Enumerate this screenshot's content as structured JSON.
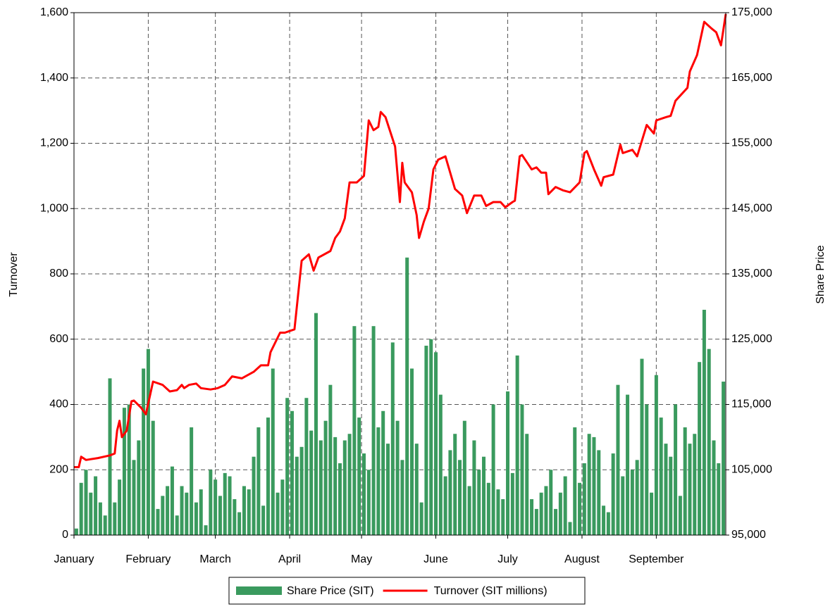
{
  "chart_data": {
    "type": "bar",
    "y_label": "Turnover",
    "y2_label": "Share Price",
    "xlim": [
      0,
      272
    ],
    "xticks": [
      {
        "value": 0,
        "label": "January"
      },
      {
        "value": 31,
        "label": "February"
      },
      {
        "value": 59,
        "label": "March"
      },
      {
        "value": 90,
        "label": "April"
      },
      {
        "value": 120,
        "label": "May"
      },
      {
        "value": 151,
        "label": "June"
      },
      {
        "value": 181,
        "label": "July"
      },
      {
        "value": 212,
        "label": "August"
      },
      {
        "value": 243,
        "label": "September"
      }
    ],
    "ylim": [
      0,
      1600
    ],
    "yticks": [
      0,
      200,
      400,
      600,
      800,
      {
        "value": 1000,
        "label": "1,000"
      },
      {
        "value": 1200,
        "label": "1,200"
      },
      {
        "value": 1400,
        "label": "1,400"
      },
      {
        "value": 1600,
        "label": "1,600"
      }
    ],
    "y2lim": [
      95000,
      175000
    ],
    "y2ticks": [
      {
        "value": 95000,
        "label": "95,000"
      },
      {
        "value": 105000,
        "label": "105,000"
      },
      {
        "value": 115000,
        "label": "115,000"
      },
      {
        "value": 125000,
        "label": "125,000"
      },
      {
        "value": 135000,
        "label": "135,000"
      },
      {
        "value": 145000,
        "label": "145,000"
      },
      {
        "value": 155000,
        "label": "155,000"
      },
      {
        "value": 165000,
        "label": "165,000"
      },
      {
        "value": 175000,
        "label": "175,000"
      }
    ],
    "grid": true,
    "legend": "bottom",
    "series": [
      {
        "name": "Share Price (SIT)",
        "type": "bar",
        "color": "#3a9a5e",
        "x": [
          1,
          3,
          5,
          7,
          9,
          11,
          13,
          15,
          17,
          19,
          21,
          23,
          25,
          27,
          29,
          31,
          33,
          35,
          37,
          39,
          41,
          43,
          45,
          47,
          49,
          51,
          53,
          55,
          57,
          59,
          61,
          63,
          65,
          67,
          69,
          71,
          73,
          75,
          77,
          79,
          81,
          83,
          85,
          87,
          89,
          91,
          93,
          95,
          97,
          99,
          101,
          103,
          105,
          107,
          109,
          111,
          113,
          115,
          117,
          119,
          121,
          123,
          125,
          127,
          129,
          131,
          133,
          135,
          137,
          139,
          141,
          143,
          145,
          147,
          149,
          151,
          153,
          155,
          157,
          159,
          161,
          163,
          165,
          167,
          169,
          171,
          173,
          175,
          177,
          179,
          181,
          183,
          185,
          187,
          189,
          191,
          193,
          195,
          197,
          199,
          201,
          203,
          205,
          207,
          209,
          211,
          213,
          215,
          217,
          219,
          221,
          223,
          225,
          227,
          229,
          231,
          233,
          235,
          237,
          239,
          241,
          243,
          245,
          247,
          249,
          251,
          253,
          255,
          257,
          259,
          261,
          263,
          265,
          267,
          269,
          271
        ],
        "values": [
          20,
          160,
          200,
          130,
          180,
          100,
          60,
          480,
          100,
          170,
          390,
          400,
          230,
          290,
          510,
          570,
          350,
          80,
          120,
          150,
          210,
          60,
          150,
          130,
          330,
          100,
          140,
          30,
          200,
          170,
          120,
          190,
          180,
          110,
          70,
          150,
          140,
          240,
          330,
          90,
          360,
          510,
          130,
          170,
          420,
          380,
          240,
          270,
          420,
          320,
          680,
          290,
          350,
          460,
          300,
          220,
          290,
          310,
          640,
          360,
          250,
          200,
          640,
          330,
          380,
          280,
          590,
          350,
          230,
          850,
          510,
          280,
          100,
          580,
          600,
          560,
          430,
          180,
          260,
          310,
          230,
          350,
          150,
          290,
          200,
          240,
          160,
          400,
          140,
          110,
          440,
          190,
          550,
          400,
          310,
          110,
          80,
          130,
          150,
          200,
          80,
          130,
          180,
          40,
          330,
          160,
          220,
          310,
          300,
          260,
          90,
          70,
          250,
          460,
          180,
          430,
          200,
          230,
          540,
          400,
          130,
          490,
          360,
          280,
          240,
          400,
          120,
          330,
          280,
          310,
          530,
          690,
          570,
          290,
          220,
          470
        ]
      },
      {
        "name": "Turnover (SIT millions)",
        "type": "line",
        "axis": "y2",
        "color": "#ff0000",
        "x": [
          0,
          2,
          3,
          5,
          10,
          15,
          17,
          18,
          19,
          20,
          22,
          24,
          25,
          28,
          30,
          33,
          37,
          40,
          43,
          45,
          46,
          48,
          51,
          53,
          57,
          60,
          63,
          66,
          70,
          75,
          78,
          81,
          82,
          84,
          86,
          88,
          92,
          93,
          95,
          98,
          100,
          102,
          107,
          109,
          111,
          113,
          115,
          118,
          121,
          123,
          125,
          127,
          128,
          130,
          134,
          136,
          137,
          138,
          141,
          143,
          144,
          146,
          148,
          150,
          152,
          155,
          159,
          162,
          164,
          167,
          170,
          172,
          175,
          178,
          180,
          183,
          184,
          186,
          187,
          191,
          193,
          195,
          197,
          198,
          201,
          204,
          207,
          211,
          213,
          214,
          217,
          220,
          221,
          225,
          228,
          229,
          233,
          235,
          239,
          242,
          243,
          247,
          249,
          251,
          256,
          257,
          260,
          263,
          266,
          268,
          270,
          272
        ],
        "values": [
          105400,
          105400,
          107000,
          106500,
          106800,
          107200,
          107500,
          111000,
          112500,
          110000,
          111000,
          115500,
          115600,
          114500,
          113500,
          118500,
          118000,
          117000,
          117200,
          118000,
          117500,
          118000,
          118200,
          117500,
          117300,
          117500,
          118000,
          119300,
          119000,
          120000,
          121000,
          121000,
          123000,
          124500,
          126000,
          126000,
          126500,
          130000,
          137000,
          138000,
          135500,
          137500,
          138500,
          140500,
          141500,
          143500,
          149000,
          149000,
          150000,
          158500,
          157000,
          157500,
          159800,
          159000,
          154500,
          146000,
          152000,
          149000,
          147500,
          144000,
          140500,
          143000,
          145000,
          151000,
          152500,
          153000,
          148000,
          147000,
          144300,
          147000,
          147000,
          145400,
          146000,
          146000,
          145200,
          146000,
          146200,
          153000,
          153200,
          151000,
          151300,
          150500,
          150500,
          147200,
          148300,
          147800,
          147500,
          149000,
          153500,
          153800,
          151000,
          148500,
          149800,
          150200,
          154800,
          153500,
          154000,
          153000,
          157800,
          156500,
          158500,
          159000,
          159200,
          161500,
          163500,
          166000,
          168500,
          173600,
          172600,
          172000,
          170000,
          174800
        ]
      }
    ]
  }
}
